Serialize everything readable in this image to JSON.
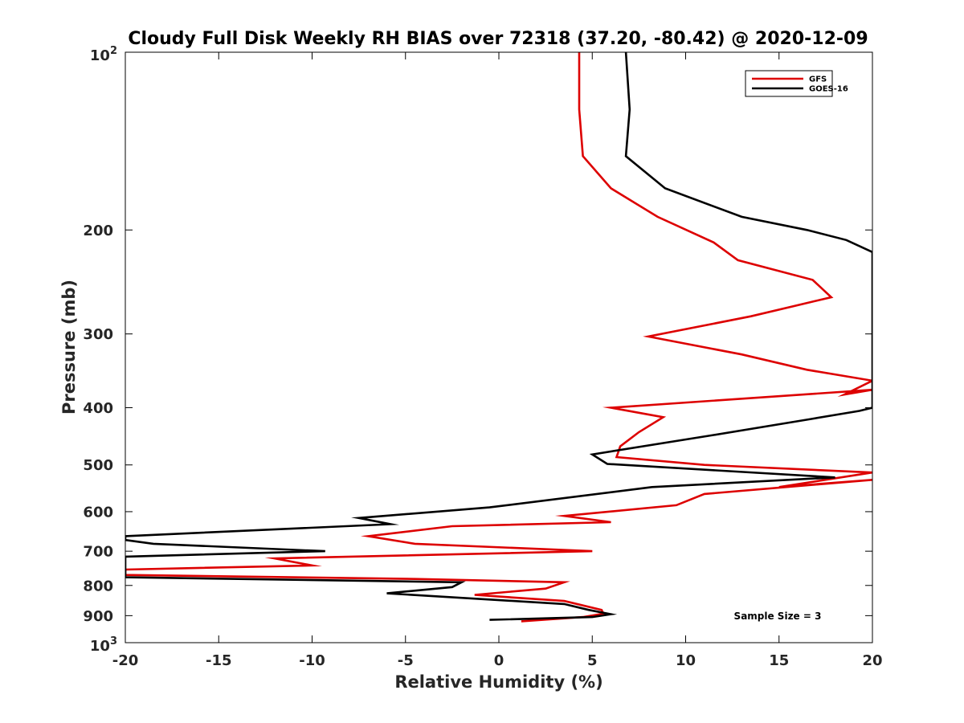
{
  "chart_data": {
    "type": "line",
    "title": "Cloudy Full Disk Weekly RH BIAS over 72318 (37.20, -80.42) @ 2020-12-09",
    "xlabel": "Relative Humidity (%)",
    "ylabel": "Pressure (mb)",
    "xlim": [
      -20,
      20
    ],
    "ylim": [
      100,
      1000
    ],
    "yscale": "log",
    "y_reversed": true,
    "grid": false,
    "legend_position": "top-right",
    "x_ticks": [
      -20,
      -15,
      -10,
      -5,
      0,
      5,
      10,
      15,
      20
    ],
    "x_tick_labels": [
      "-20",
      "-15",
      "-10",
      "-5",
      "0",
      "5",
      "10",
      "15",
      "20"
    ],
    "y_ticks": [
      100,
      200,
      300,
      400,
      500,
      600,
      700,
      800,
      900,
      1000
    ],
    "y_tick_labels": [
      {
        "base": "10",
        "exp": "2"
      },
      {
        "text": "200"
      },
      {
        "text": "300"
      },
      {
        "text": "400"
      },
      {
        "text": "500"
      },
      {
        "text": "600"
      },
      {
        "text": "700"
      },
      {
        "text": "800"
      },
      {
        "text": "900"
      },
      {
        "base": "10",
        "exp": "3"
      }
    ],
    "annotation": "Sample Size = 3",
    "series": [
      {
        "name": "GFS",
        "color": "#dd0000",
        "points": [
          [
            4.3,
            100
          ],
          [
            4.3,
            125
          ],
          [
            4.5,
            150
          ],
          [
            6.0,
            170
          ],
          [
            8.5,
            190
          ],
          [
            11.5,
            210
          ],
          [
            12.8,
            225
          ],
          [
            16.8,
            243
          ],
          [
            17.8,
            260
          ],
          [
            13.5,
            280
          ],
          [
            8.0,
            303
          ],
          [
            13.0,
            325
          ],
          [
            16.5,
            345
          ],
          [
            20.0,
            360
          ],
          [
            18.5,
            380
          ],
          [
            20.0,
            373
          ],
          [
            6.0,
            400
          ],
          [
            8.8,
            415
          ],
          [
            7.5,
            440
          ],
          [
            6.5,
            465
          ],
          [
            6.3,
            485
          ],
          [
            11.0,
            500
          ],
          [
            20.0,
            515
          ],
          [
            15.0,
            545
          ],
          [
            20.0,
            530
          ],
          [
            11.0,
            560
          ],
          [
            9.5,
            585
          ],
          [
            3.5,
            610
          ],
          [
            6.0,
            625
          ],
          [
            -2.5,
            635
          ],
          [
            -7.0,
            660
          ],
          [
            -4.5,
            680
          ],
          [
            5.0,
            700
          ],
          [
            -12.0,
            720
          ],
          [
            -10.0,
            740
          ],
          [
            -20.0,
            752
          ],
          [
            -20.0,
            768
          ],
          [
            -4.5,
            780
          ],
          [
            3.5,
            790
          ],
          [
            2.5,
            810
          ],
          [
            -1.3,
            830
          ],
          [
            3.5,
            850
          ],
          [
            5.5,
            880
          ],
          [
            5.6,
            893
          ],
          [
            4.5,
            905
          ],
          [
            1.2,
            920
          ]
        ]
      },
      {
        "name": "GOES-16",
        "color": "#000000",
        "points": [
          [
            6.8,
            100
          ],
          [
            7.0,
            125
          ],
          [
            6.8,
            150
          ],
          [
            8.9,
            170
          ],
          [
            13.0,
            190
          ],
          [
            16.5,
            200
          ],
          [
            18.6,
            208
          ],
          [
            20.0,
            218
          ],
          [
            20.0,
            400
          ],
          [
            19.3,
            405
          ],
          [
            16.7,
            418
          ],
          [
            11.5,
            445
          ],
          [
            5.0,
            480
          ],
          [
            5.8,
            498
          ],
          [
            18.0,
            525
          ],
          [
            8.2,
            545
          ],
          [
            -0.5,
            590
          ],
          [
            -7.5,
            615
          ],
          [
            -5.8,
            630
          ],
          [
            -20.0,
            660
          ],
          [
            -20.0,
            670
          ],
          [
            -18.5,
            680
          ],
          [
            -9.3,
            700
          ],
          [
            -20.0,
            715
          ],
          [
            -20.0,
            765
          ],
          [
            -20.0,
            775
          ],
          [
            -2.0,
            790
          ],
          [
            -2.5,
            805
          ],
          [
            -6.0,
            825
          ],
          [
            3.5,
            860
          ],
          [
            4.8,
            880
          ],
          [
            6.0,
            895
          ],
          [
            5.0,
            905
          ],
          [
            -0.5,
            915
          ]
        ]
      }
    ]
  }
}
